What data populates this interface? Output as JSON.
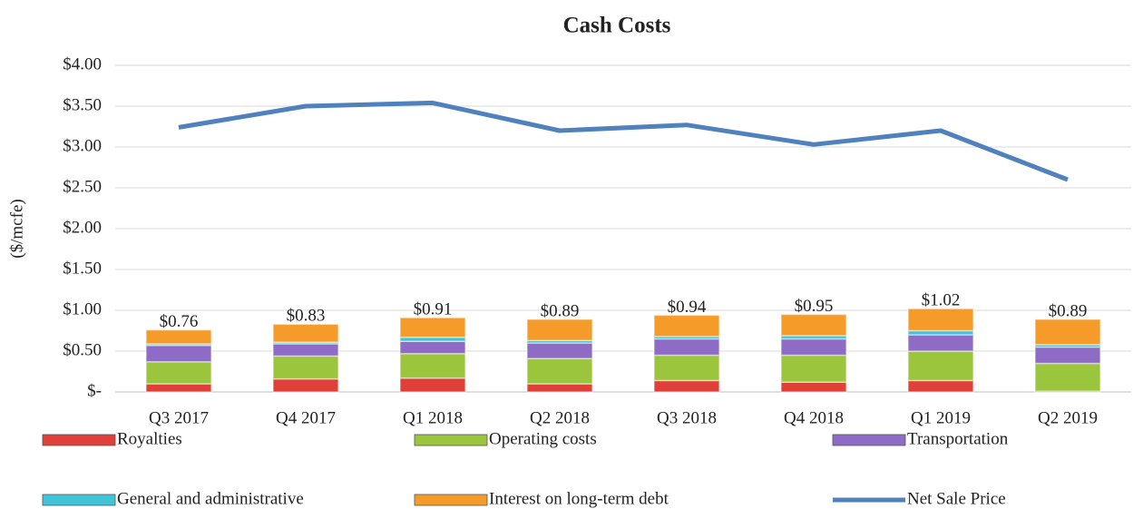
{
  "chart_data": {
    "type": "bar",
    "title": "Cash Costs",
    "y_label": "($/mcfe)",
    "categories": [
      "Q3 2017",
      "Q4 2017",
      "Q1 2018",
      "Q2 2018",
      "Q3 2018",
      "Q4 2018",
      "Q1 2019",
      "Q2 2019"
    ],
    "series": [
      {
        "name": "Royalties",
        "type": "bar",
        "color": "#e0403a",
        "values": [
          0.1,
          0.16,
          0.17,
          0.1,
          0.14,
          0.12,
          0.14,
          0.01
        ]
      },
      {
        "name": "Operating costs",
        "type": "bar",
        "color": "#9bc53d",
        "values": [
          0.27,
          0.28,
          0.3,
          0.31,
          0.31,
          0.33,
          0.36,
          0.34
        ]
      },
      {
        "name": "Transportation",
        "type": "bar",
        "color": "#8e6bc4",
        "values": [
          0.2,
          0.15,
          0.15,
          0.19,
          0.2,
          0.2,
          0.2,
          0.2
        ]
      },
      {
        "name": "General and administrative",
        "type": "bar",
        "color": "#3fc4d8",
        "values": [
          0.02,
          0.02,
          0.05,
          0.03,
          0.03,
          0.04,
          0.05,
          0.03
        ]
      },
      {
        "name": "Interest on long-term debt",
        "type": "bar",
        "color": "#f59b2a",
        "values": [
          0.17,
          0.22,
          0.24,
          0.26,
          0.26,
          0.26,
          0.27,
          0.31
        ]
      },
      {
        "name": "Net Sale Price",
        "type": "line",
        "color": "#4f81bd",
        "values": [
          3.24,
          3.5,
          3.54,
          3.2,
          3.27,
          3.03,
          3.2,
          2.6
        ]
      }
    ],
    "totals": [
      0.76,
      0.83,
      0.91,
      0.89,
      0.94,
      0.95,
      1.02,
      0.89
    ],
    "total_labels": [
      "$0.76",
      "$0.83",
      "$0.91",
      "$0.89",
      "$0.94",
      "$0.95",
      "$1.02",
      "$0.89"
    ],
    "ylim": [
      0,
      4
    ],
    "yticks": [
      {
        "value": 0,
        "label": "$-"
      },
      {
        "value": 0.5,
        "label": "$0.50"
      },
      {
        "value": 1,
        "label": "$1.00"
      },
      {
        "value": 1.5,
        "label": "$1.50"
      },
      {
        "value": 2,
        "label": "$2.00"
      },
      {
        "value": 2.5,
        "label": "$2.50"
      },
      {
        "value": 3,
        "label": "$3.00"
      },
      {
        "value": 3.5,
        "label": "$3.50"
      },
      {
        "value": 4,
        "label": "$4.00"
      }
    ],
    "grid": true
  }
}
